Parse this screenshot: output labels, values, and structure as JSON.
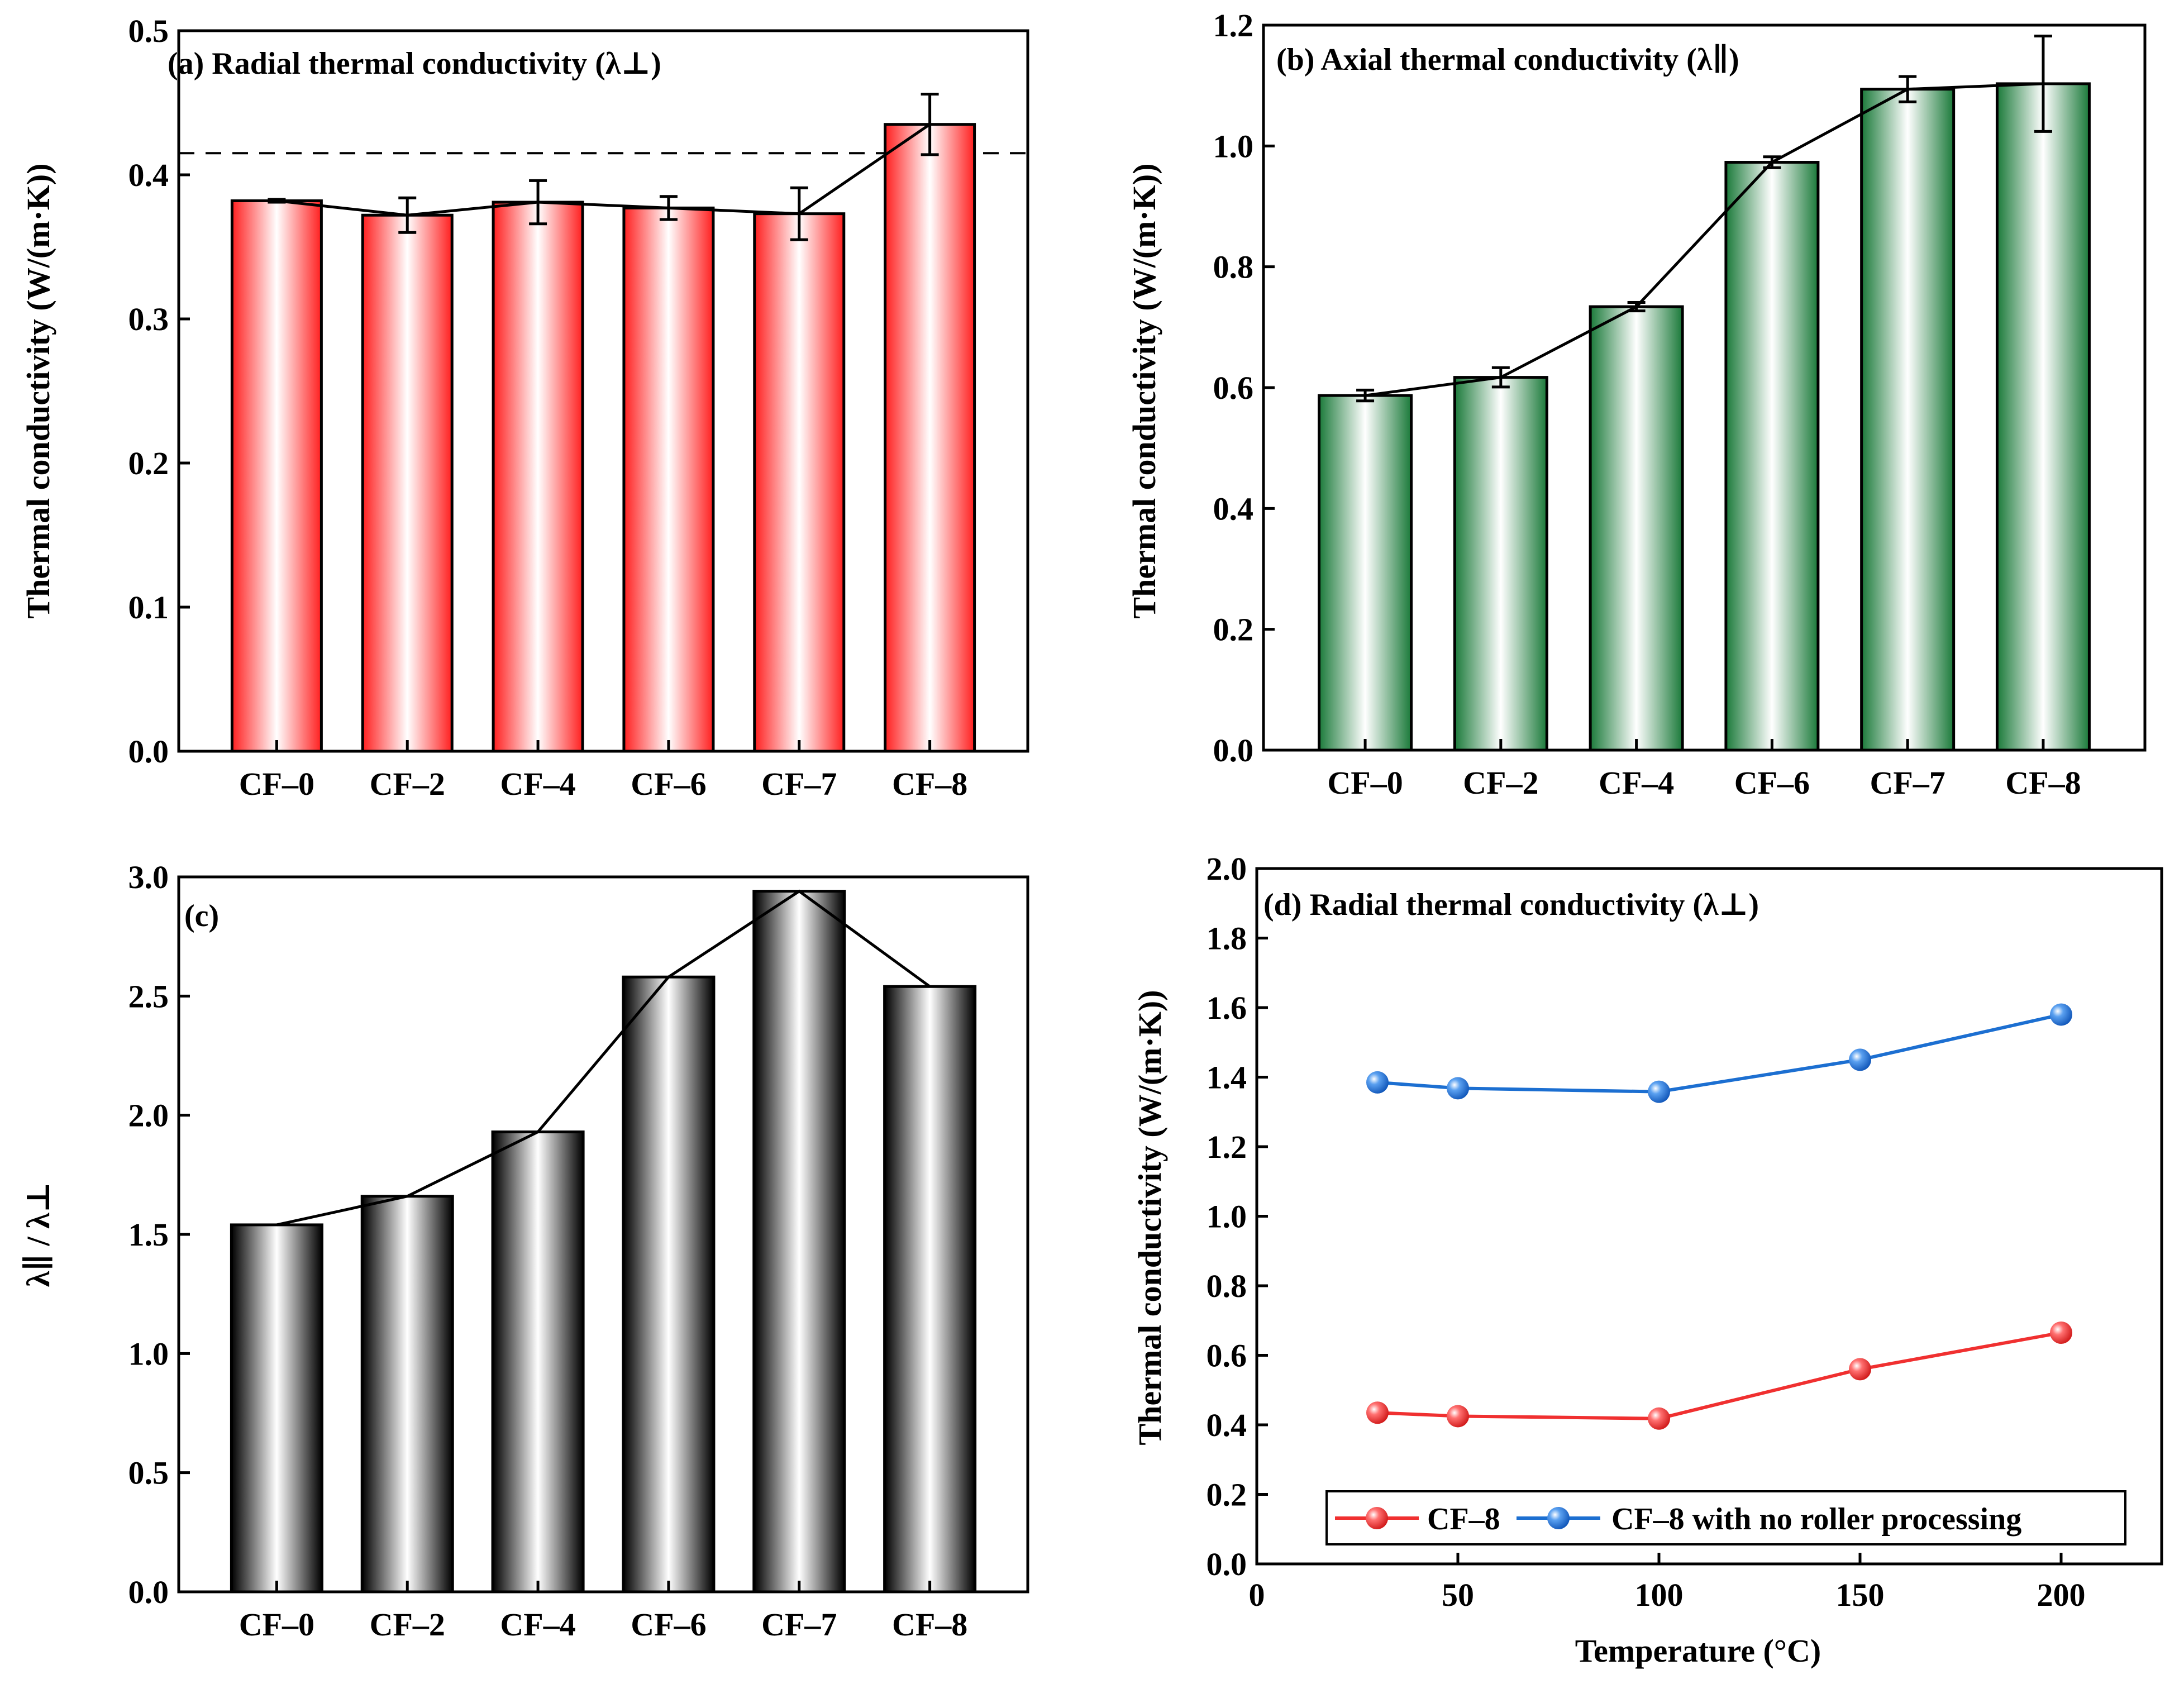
{
  "chart_data": [
    {
      "id": "a",
      "type": "bar",
      "title": "(a) Radial thermal conductivity (λ⊥)",
      "ylabel": "Thermal conductivity (W/(m·K))",
      "xlabel": "",
      "categories": [
        "CF–0",
        "CF–2",
        "CF–4",
        "CF–6",
        "CF–7",
        "CF–8"
      ],
      "values": [
        0.382,
        0.372,
        0.381,
        0.377,
        0.373,
        0.435
      ],
      "errors": [
        0.001,
        0.012,
        0.015,
        0.008,
        0.018,
        0.021
      ],
      "ylim": [
        0.0,
        0.5
      ],
      "yticks": [
        "0.0",
        "0.1",
        "0.2",
        "0.3",
        "0.4",
        "0.5"
      ],
      "reference_line": 0.415,
      "bar_color": "#ff1f1f",
      "trend_line": true
    },
    {
      "id": "b",
      "type": "bar",
      "title": "(b) Axial thermal conductivity (λ∥)",
      "ylabel": "Thermal conductivity (W/(m·K))",
      "xlabel": "",
      "categories": [
        "CF–0",
        "CF–2",
        "CF–4",
        "CF–6",
        "CF–7",
        "CF–8"
      ],
      "values": [
        0.587,
        0.617,
        0.734,
        0.973,
        1.094,
        1.103
      ],
      "errors": [
        0.009,
        0.016,
        0.007,
        0.009,
        0.021,
        0.079
      ],
      "ylim": [
        0.0,
        1.2
      ],
      "yticks": [
        "0.0",
        "0.2",
        "0.4",
        "0.6",
        "0.8",
        "1.0",
        "1.2"
      ],
      "bar_color": "#1b7a3a",
      "trend_line": true
    },
    {
      "id": "c",
      "type": "bar",
      "title": "(c)",
      "ylabel": "λ∥ / λ⊥",
      "xlabel": "",
      "categories": [
        "CF–0",
        "CF–2",
        "CF–4",
        "CF–6",
        "CF–7",
        "CF–8"
      ],
      "values": [
        1.54,
        1.66,
        1.93,
        2.58,
        2.94,
        2.54
      ],
      "ylim": [
        0.0,
        3.0
      ],
      "yticks": [
        "0.0",
        "0.5",
        "1.0",
        "1.5",
        "2.0",
        "2.5",
        "3.0"
      ],
      "bar_color": "#000000",
      "trend_line": true
    },
    {
      "id": "d",
      "type": "line",
      "title": "(d) Radial thermal conductivity (λ⊥)",
      "ylabel": "Thermal conductivity (W/(m·K))",
      "xlabel": "Temperature (°C)",
      "xlim": [
        0,
        225
      ],
      "ylim": [
        0.0,
        2.0
      ],
      "xticks": [
        "0",
        "50",
        "100",
        "150",
        "200"
      ],
      "yticks": [
        "0.0",
        "0.2",
        "0.4",
        "0.6",
        "0.8",
        "1.0",
        "1.2",
        "1.4",
        "1.6",
        "1.8",
        "2.0"
      ],
      "legend_position": "bottom",
      "series": [
        {
          "name": "CF–8",
          "color": "#f03030",
          "x": [
            30,
            50,
            100,
            150,
            200
          ],
          "y": [
            0.435,
            0.425,
            0.418,
            0.56,
            0.665
          ]
        },
        {
          "name": "CF–8 with no roller processing",
          "color": "#1c6fd1",
          "x": [
            30,
            50,
            100,
            150,
            200
          ],
          "y": [
            1.385,
            1.368,
            1.358,
            1.45,
            1.58
          ]
        }
      ]
    }
  ]
}
